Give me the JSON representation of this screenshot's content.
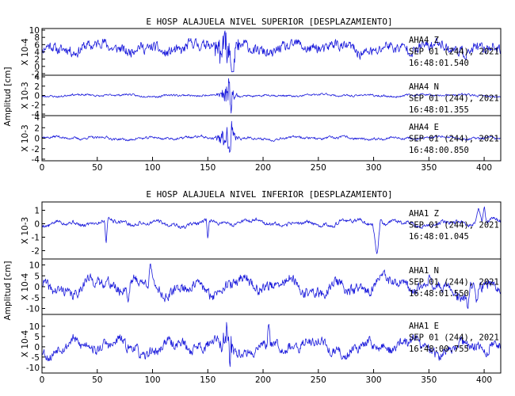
{
  "chart_data": [
    {
      "type": "line",
      "title": "E HOSP ALAJUELA NIVEL SUPERIOR [DESPLAZAMIENTO]",
      "ylabel": "Amplitud [cm]",
      "xlim": [
        0,
        415
      ],
      "x_ticks": [
        0,
        50,
        100,
        150,
        200,
        250,
        300,
        350,
        400
      ],
      "panels": [
        {
          "scale_label": "X 10-4",
          "ylim": [
            -2,
            10
          ],
          "y_ticks": [
            10,
            8,
            6,
            4,
            2,
            0,
            -2
          ],
          "y_tick_labels": [
            "10",
            "8",
            "6",
            "4",
            "2",
            "0",
            "-2"
          ],
          "annotation": [
            "AHA4  Z",
            "SEP 01 (244), 2021",
            "16:48:01.540"
          ],
          "series": {
            "seed": 11,
            "base": 5,
            "slow": 1.4,
            "noise": 1.2,
            "clip": [
              -1.5,
              9.8
            ],
            "bursts": [
              {
                "t": 165,
                "amp": 3.0,
                "w": 18
              }
            ],
            "events": [
              {
                "t": 172,
                "v": -4.5,
                "w": 2
              }
            ]
          }
        },
        {
          "scale_label": "X 10-3",
          "ylim": [
            -4,
            4
          ],
          "y_ticks": [
            4,
            2,
            0,
            -2,
            -4
          ],
          "y_tick_labels": [
            "4",
            "2",
            "0",
            "-2",
            "-4"
          ],
          "annotation": [
            "AHA4  N",
            "SEP 01 (244), 2021",
            "16:48:01.355"
          ],
          "series": {
            "seed": 23,
            "base": 0,
            "slow": 0.25,
            "noise": 0.18,
            "clip": [
              -3.8,
              3.8
            ],
            "bursts": [
              {
                "t": 168,
                "amp": 1.4,
                "w": 12
              }
            ],
            "events": [
              {
                "t": 169,
                "v": 3.2,
                "w": 1
              },
              {
                "t": 171,
                "v": -3.0,
                "w": 1
              }
            ]
          }
        },
        {
          "scale_label": "X 10-3",
          "ylim": [
            -4,
            4
          ],
          "y_ticks": [
            4,
            2,
            0,
            -2,
            -4
          ],
          "y_tick_labels": [
            "4",
            "2",
            "0",
            "-2",
            "-4"
          ],
          "annotation": [
            "AHA4  E",
            "SEP 01 (244), 2021",
            "16:48:00.850"
          ],
          "series": {
            "seed": 37,
            "base": 0,
            "slow": 0.3,
            "noise": 0.2,
            "clip": [
              -3.8,
              3.8
            ],
            "bursts": [
              {
                "t": 168,
                "amp": 1.6,
                "w": 12
              }
            ],
            "events": [
              {
                "t": 170,
                "v": -3.6,
                "w": 1
              },
              {
                "t": 172,
                "v": 2.6,
                "w": 1
              }
            ]
          }
        }
      ]
    },
    {
      "type": "line",
      "title": "E HOSP ALAJUELA NIVEL INFERIOR [DESPLAZAMIENTO]",
      "ylabel": "Amplitud [cm]",
      "xlim": [
        0,
        415
      ],
      "x_ticks": [
        0,
        50,
        100,
        150,
        200,
        250,
        300,
        350,
        400
      ],
      "panels": [
        {
          "scale_label": "X 10-3",
          "ylim": [
            -2.5,
            1.5
          ],
          "y_ticks": [
            1,
            0,
            -1,
            -2
          ],
          "y_tick_labels": [
            "1",
            "0",
            "-1",
            "-2"
          ],
          "annotation": [
            "AHA1  Z",
            "SEP 01 (244), 2021",
            "16:48:01.045"
          ],
          "series": {
            "seed": 5,
            "base": 0.05,
            "slow": 0.25,
            "noise": 0.12,
            "clip": [
              -2.4,
              1.45
            ],
            "bursts": [],
            "events": [
              {
                "t": 58,
                "v": -1.9,
                "w": 1.5
              },
              {
                "t": 150,
                "v": -1.5,
                "w": 1.5
              },
              {
                "t": 303,
                "v": -2.3,
                "w": 4
              },
              {
                "t": 306,
                "v": 0.9,
                "w": 2
              },
              {
                "t": 395,
                "v": 1.1,
                "w": 3
              },
              {
                "t": 400,
                "v": 1.3,
                "w": 2
              }
            ]
          }
        },
        {
          "scale_label": "X 10-4",
          "ylim": [
            -12,
            12
          ],
          "y_ticks": [
            10,
            5,
            0,
            -5,
            -10
          ],
          "y_tick_labels": [
            "10",
            "5",
            "0",
            "-5",
            "-10"
          ],
          "annotation": [
            "AHA1  N",
            "SEP 01 (244), 2021",
            "16:48:01.550"
          ],
          "series": {
            "seed": 41,
            "base": 0,
            "slow": 4,
            "noise": 2,
            "clip": [
              -11.5,
              11.5
            ],
            "bursts": [],
            "events": [
              {
                "t": 78,
                "v": -9,
                "w": 2
              },
              {
                "t": 98,
                "v": 10,
                "w": 2
              },
              {
                "t": 385,
                "v": -10,
                "w": 2
              },
              {
                "t": 393,
                "v": -11,
                "w": 2
              }
            ]
          }
        },
        {
          "scale_label": "X 10-4",
          "ylim": [
            -12,
            15
          ],
          "y_ticks": [
            10,
            5,
            0,
            -5,
            -10
          ],
          "y_tick_labels": [
            "10",
            "5",
            "0",
            "-5",
            "-10"
          ],
          "annotation": [
            "AHA1  E",
            "SEP 01 (244), 2021",
            "16:48:00.755"
          ],
          "series": {
            "seed": 53,
            "base": 0,
            "slow": 4,
            "noise": 2,
            "clip": [
              -11.5,
              14.5
            ],
            "bursts": [
              {
                "t": 168,
                "amp": 3,
                "w": 15
              }
            ],
            "events": [
              {
                "t": 167,
                "v": 10,
                "w": 1
              },
              {
                "t": 170,
                "v": -11,
                "w": 1
              },
              {
                "t": 205,
                "v": 13,
                "w": 1.5
              }
            ]
          }
        }
      ]
    }
  ]
}
